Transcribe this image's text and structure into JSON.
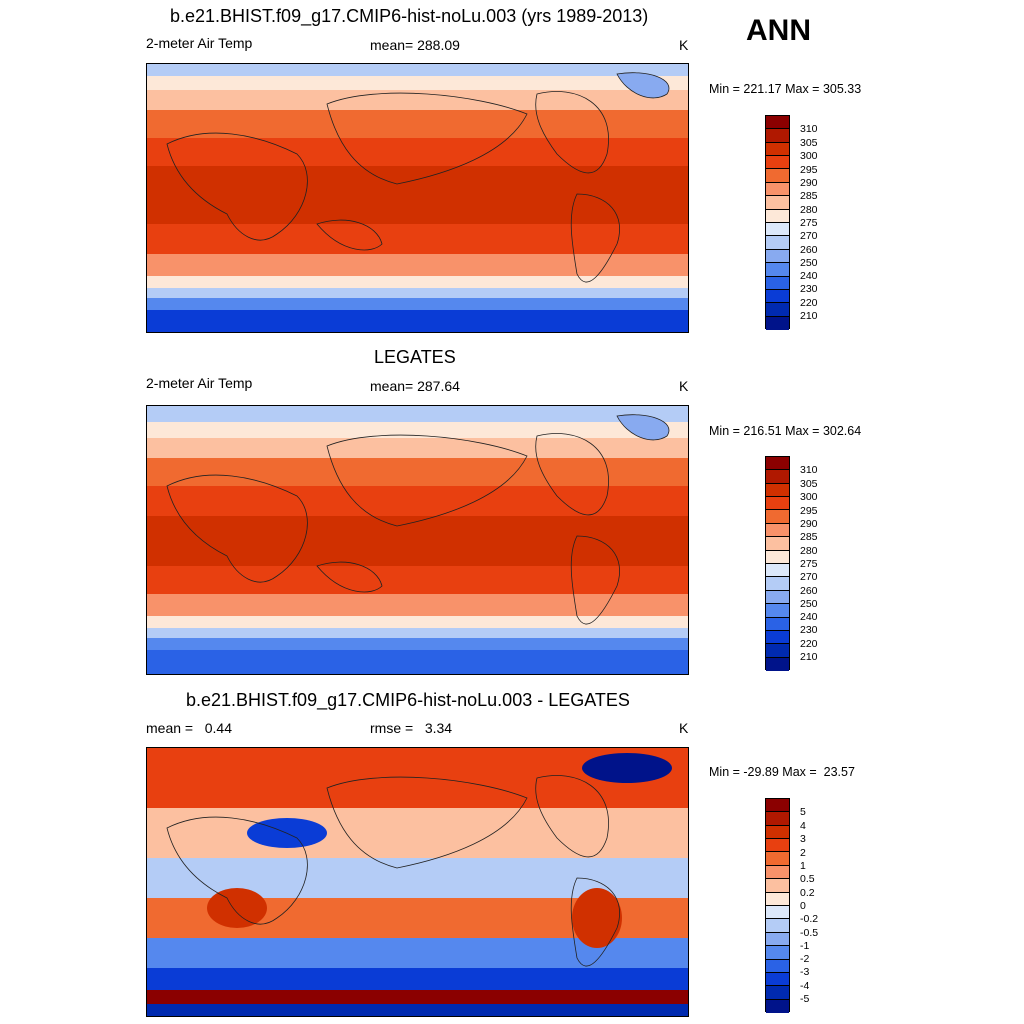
{
  "season": "ANN",
  "panels": [
    {
      "title": "b.e21.BHIST.f09_g17.CMIP6-hist-noLu.003 (yrs 1989-2013)",
      "left_label": "2-meter Air Temp",
      "center_label": "mean= 288.09",
      "units": "K",
      "minmax": "Min = 221.17 Max = 305.33",
      "colorbar_labels": [
        "310",
        "305",
        "300",
        "295",
        "290",
        "285",
        "280",
        "275",
        "270",
        "260",
        "250",
        "240",
        "230",
        "220",
        "210"
      ]
    },
    {
      "title": "LEGATES",
      "left_label": "2-meter Air Temp",
      "center_label": "mean= 287.64",
      "units": "K",
      "minmax": "Min = 216.51 Max = 302.64",
      "colorbar_labels": [
        "310",
        "305",
        "300",
        "295",
        "290",
        "285",
        "280",
        "275",
        "270",
        "260",
        "250",
        "240",
        "230",
        "220",
        "210"
      ]
    },
    {
      "title": "b.e21.BHIST.f09_g17.CMIP6-hist-noLu.003 - LEGATES",
      "left_label": "mean =   0.44",
      "center_label": "rmse =   3.34",
      "units": "K",
      "minmax": "Min = -29.89 Max =  23.57",
      "colorbar_labels": [
        "5",
        "4",
        "3",
        "2",
        "1",
        "0.5",
        "0.2",
        "0",
        "-0.2",
        "-0.5",
        "-1",
        "-2",
        "-3",
        "-4",
        "-5"
      ]
    }
  ],
  "colors": {
    "temp_scale": [
      "#8b0000",
      "#b01800",
      "#d03000",
      "#e84010",
      "#f06a30",
      "#f8926a",
      "#fcc0a0",
      "#fde8d8",
      "#dce8fa",
      "#b4ccf6",
      "#88aaf0",
      "#5588ee",
      "#2a62e6",
      "#0a3cd6",
      "#002ab0",
      "#00138a"
    ],
    "diff_scale": [
      "#8b0000",
      "#b01800",
      "#d03000",
      "#e84010",
      "#f06a30",
      "#f8926a",
      "#fcc0a0",
      "#fde8d8",
      "#dce8fa",
      "#b4ccf6",
      "#88aaf0",
      "#5588ee",
      "#2a62e6",
      "#0a3cd6",
      "#002ab0",
      "#00138a"
    ]
  }
}
